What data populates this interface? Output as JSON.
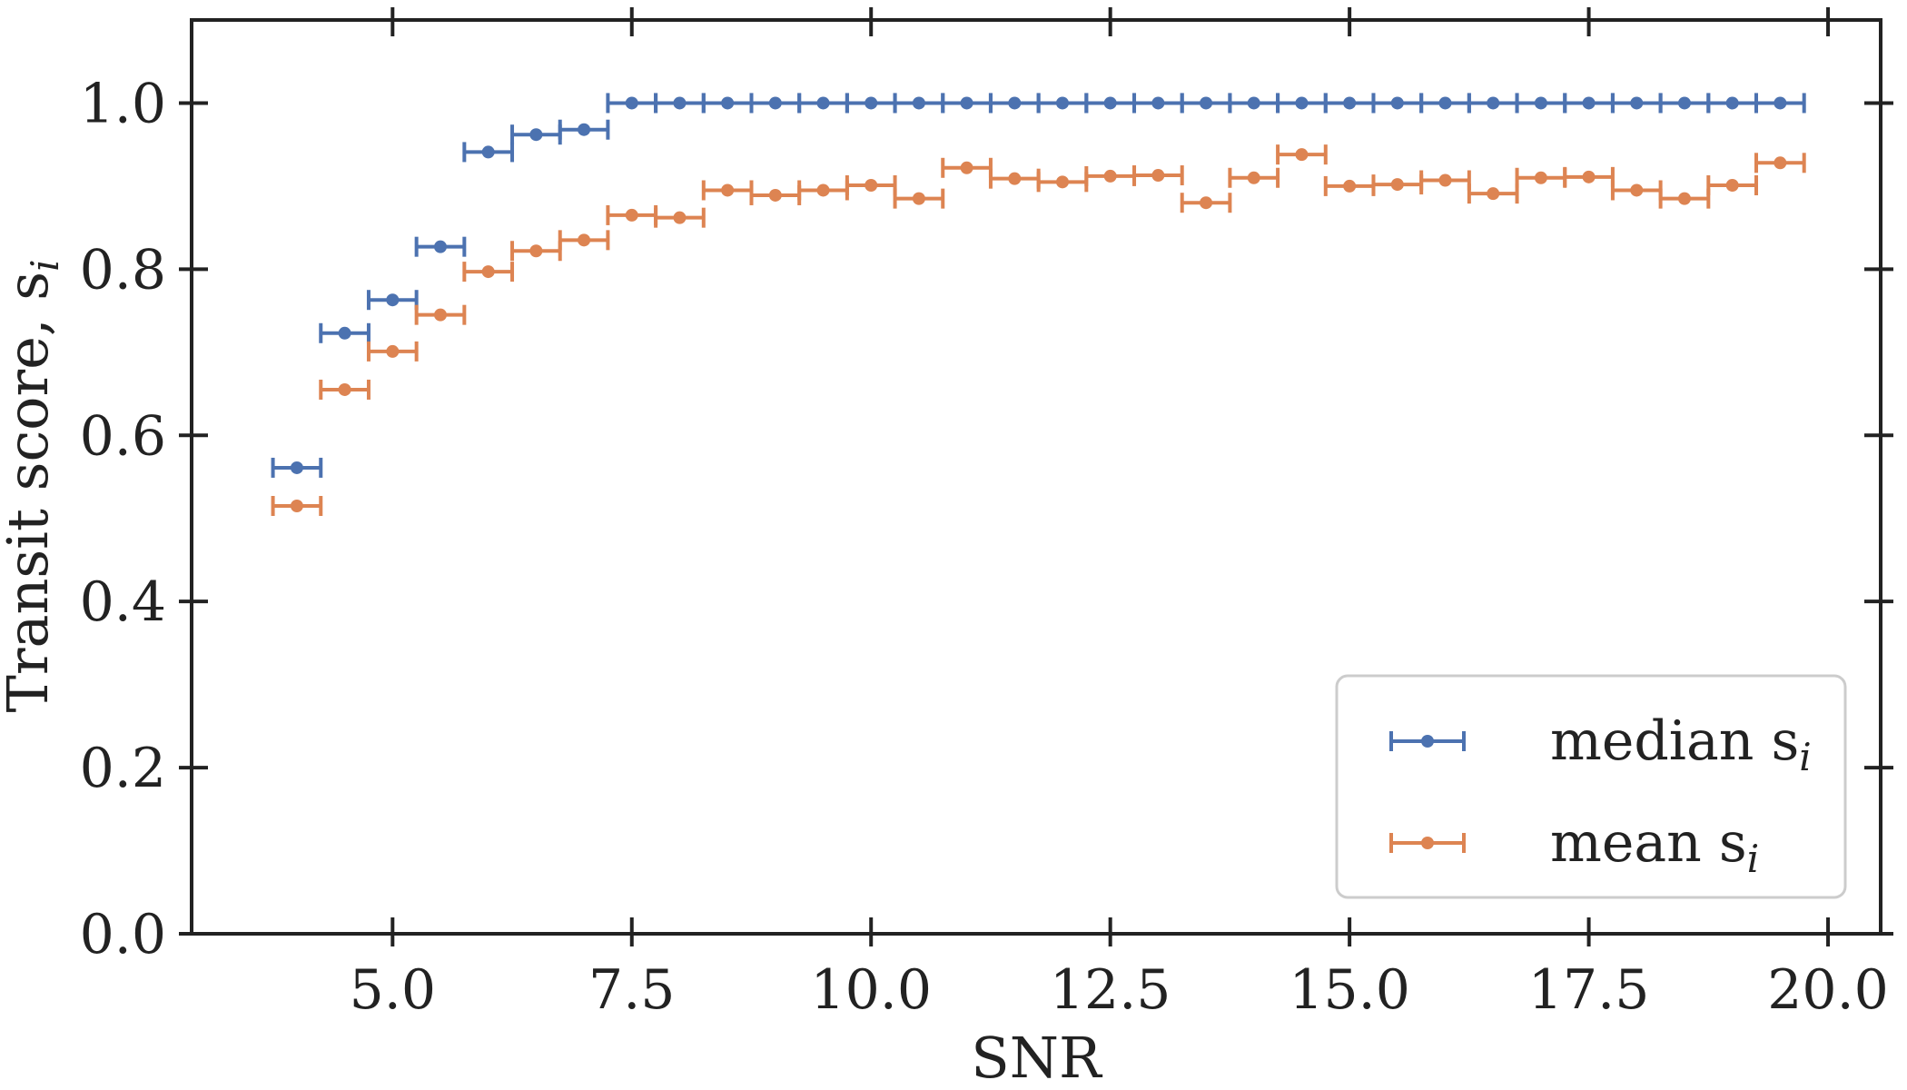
{
  "chart_data": {
    "type": "scatter",
    "title": "",
    "xlabel": "SNR",
    "ylabel": "Transit score, s",
    "ylabel_subscript": "i",
    "xlim": [
      2.9,
      20.55
    ],
    "ylim": [
      0.0,
      1.1
    ],
    "xticks": [
      5.0,
      7.5,
      10.0,
      12.5,
      15.0,
      17.5,
      20.0
    ],
    "xtick_labels": [
      "5.0",
      "7.5",
      "10.0",
      "12.5",
      "15.0",
      "17.5",
      "20.0"
    ],
    "yticks": [
      0.0,
      0.2,
      0.4,
      0.6,
      0.8,
      1.0
    ],
    "ytick_labels": [
      "0.0",
      "0.2",
      "0.4",
      "0.6",
      "0.8",
      "1.0"
    ],
    "x_error": 0.25,
    "x": [
      4.0,
      4.5,
      5.0,
      5.5,
      6.0,
      6.5,
      7.0,
      7.5,
      8.0,
      8.5,
      9.0,
      9.5,
      10.0,
      10.5,
      11.0,
      11.5,
      12.0,
      12.5,
      13.0,
      13.5,
      14.0,
      14.5,
      15.0,
      15.5,
      16.0,
      16.5,
      17.0,
      17.5,
      18.0,
      18.5,
      19.0,
      19.5
    ],
    "series": [
      {
        "name": "median s",
        "legend_label": "median s",
        "legend_subscript": "i",
        "color": "#4c72b0",
        "values": [
          0.561,
          0.723,
          0.763,
          0.827,
          0.941,
          0.962,
          0.968,
          1.0,
          1.0,
          1.0,
          1.0,
          1.0,
          1.0,
          1.0,
          1.0,
          1.0,
          1.0,
          1.0,
          1.0,
          1.0,
          1.0,
          1.0,
          1.0,
          1.0,
          1.0,
          1.0,
          1.0,
          1.0,
          1.0,
          1.0,
          1.0,
          1.0
        ]
      },
      {
        "name": "mean s",
        "legend_label": "mean s",
        "legend_subscript": "i",
        "color": "#dd8452",
        "values": [
          0.515,
          0.655,
          0.701,
          0.745,
          0.797,
          0.822,
          0.835,
          0.865,
          0.862,
          0.895,
          0.889,
          0.895,
          0.901,
          0.885,
          0.922,
          0.909,
          0.905,
          0.912,
          0.913,
          0.88,
          0.91,
          0.938,
          0.9,
          0.902,
          0.907,
          0.891,
          0.91,
          0.911,
          0.895,
          0.885,
          0.901,
          0.928
        ]
      }
    ],
    "legend_position": "lower-right",
    "grid": false
  }
}
